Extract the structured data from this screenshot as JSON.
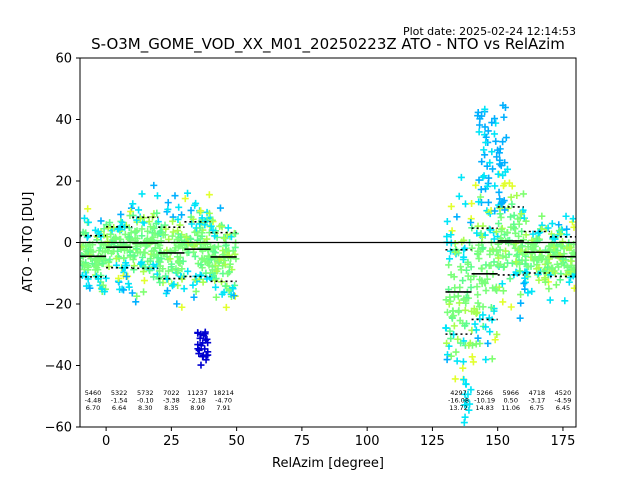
{
  "plot_date": "Plot date: 2025-02-24 12:14:53",
  "chart_data": {
    "type": "scatter",
    "title": "S-O3M_GOME_VOD_XX_M01_20250223Z ATO - NTO vs RelAzim",
    "xlabel": "RelAzim [degree]",
    "ylabel": "ATO - NTO [DU]",
    "xlim": [
      -10,
      180
    ],
    "ylim": [
      -60,
      60
    ],
    "xticks": [
      "0",
      "25",
      "50",
      "75",
      "100",
      "125",
      "150",
      "175"
    ],
    "yticks": [
      "−60",
      "−40",
      "−20",
      "0",
      "20",
      "40",
      "60"
    ],
    "xtick_values": [
      0,
      25,
      50,
      75,
      100,
      125,
      150,
      175
    ],
    "ytick_values": [
      -60,
      -40,
      -20,
      0,
      20,
      40,
      60
    ],
    "grid": false,
    "marker": "+",
    "zero_line": 0,
    "bins": [
      {
        "x0": -10,
        "x1": 0,
        "mean": -4.48,
        "std": 6.7,
        "count": "5460",
        "mean_label": "-4.48",
        "std_label": "6.70"
      },
      {
        "x0": 0,
        "x1": 10,
        "mean": -1.54,
        "std": 6.64,
        "count": "5322",
        "mean_label": "-1.54",
        "std_label": "6.64"
      },
      {
        "x0": 10,
        "x1": 20,
        "mean": -0.1,
        "std": 8.3,
        "count": "5732",
        "mean_label": "-0.10",
        "std_label": "8.30"
      },
      {
        "x0": 20,
        "x1": 30,
        "mean": -3.38,
        "std": 8.35,
        "count": "7022",
        "mean_label": "-3.38",
        "std_label": "8.35"
      },
      {
        "x0": 30,
        "x1": 40,
        "mean": -2.18,
        "std": 8.9,
        "count": "11237",
        "mean_label": "-2.18",
        "std_label": "8.90"
      },
      {
        "x0": 40,
        "x1": 50,
        "mean": -4.7,
        "std": 7.91,
        "count": "18214",
        "mean_label": "-4.70",
        "std_label": "7.91"
      },
      {
        "x0": 130,
        "x1": 140,
        "mean": -16.08,
        "std": 13.72,
        "count": "4297",
        "mean_label": "-16.08",
        "std_label": "13.72"
      },
      {
        "x0": 140,
        "x1": 150,
        "mean": -10.19,
        "std": 14.83,
        "count": "5266",
        "mean_label": "-10.19",
        "std_label": "14.83"
      },
      {
        "x0": 150,
        "x1": 160,
        "mean": 0.5,
        "std": 11.06,
        "count": "5966",
        "mean_label": "0.50",
        "std_label": "11.06"
      },
      {
        "x0": 160,
        "x1": 170,
        "mean": -3.17,
        "std": 6.75,
        "count": "4718",
        "mean_label": "-3.17",
        "std_label": "6.75"
      },
      {
        "x0": 170,
        "x1": 180,
        "mean": -4.59,
        "std": 6.45,
        "count": "4520",
        "mean_label": "-4.59",
        "std_label": "6.45"
      }
    ],
    "clusters": [
      {
        "x": [
          -10,
          47
        ],
        "y_center": -3,
        "spread": 16,
        "colors": [
          "#7bff7b",
          "#5dfd8e",
          "#00e5f8",
          "#a8ff50",
          "#e2ff2d",
          "#00c0ff",
          "#0000d0"
        ]
      },
      {
        "x": [
          130,
          180
        ],
        "y_center": -4,
        "spread": 20,
        "colors": [
          "#7bff7b",
          "#5dfd8e",
          "#00e5f8",
          "#00b0ff",
          "#a8ff50",
          "#e2ff2d",
          "#0000d0"
        ]
      }
    ],
    "colors": {
      "dense": "#7bff7b",
      "cyan": "#00e5f8",
      "blue": "#00b0ff",
      "dark_blue": "#0000d0",
      "yellow": "#e2ff2d",
      "lime": "#a8ff50"
    }
  }
}
